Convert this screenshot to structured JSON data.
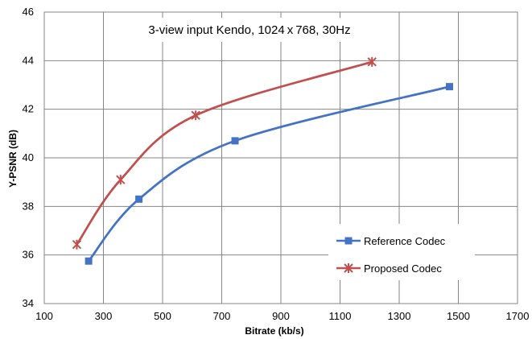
{
  "chart_data": {
    "type": "line",
    "title": "3-view input Kendo, 1024 x 768, 30Hz",
    "xlabel": "Bitrate (kb/s)",
    "ylabel": "Y-PSNR (dB)",
    "xlim": [
      100,
      1700
    ],
    "ylim": [
      34,
      46
    ],
    "xticks": [
      100,
      300,
      500,
      700,
      900,
      1100,
      1300,
      1500,
      1700
    ],
    "yticks": [
      34,
      36,
      38,
      40,
      42,
      44,
      46
    ],
    "grid": true,
    "legend_position": "bottom-right",
    "series": [
      {
        "name": "Reference Codec",
        "color": "#4472C4",
        "marker": "square",
        "x": [
          250,
          420,
          745,
          1470
        ],
        "y": [
          35.75,
          38.3,
          40.7,
          42.93
        ]
      },
      {
        "name": "Proposed Codec",
        "color": "#C0504D",
        "marker": "star",
        "x": [
          210,
          358,
          612,
          1208
        ],
        "y": [
          36.43,
          39.1,
          41.75,
          43.95
        ]
      }
    ]
  }
}
